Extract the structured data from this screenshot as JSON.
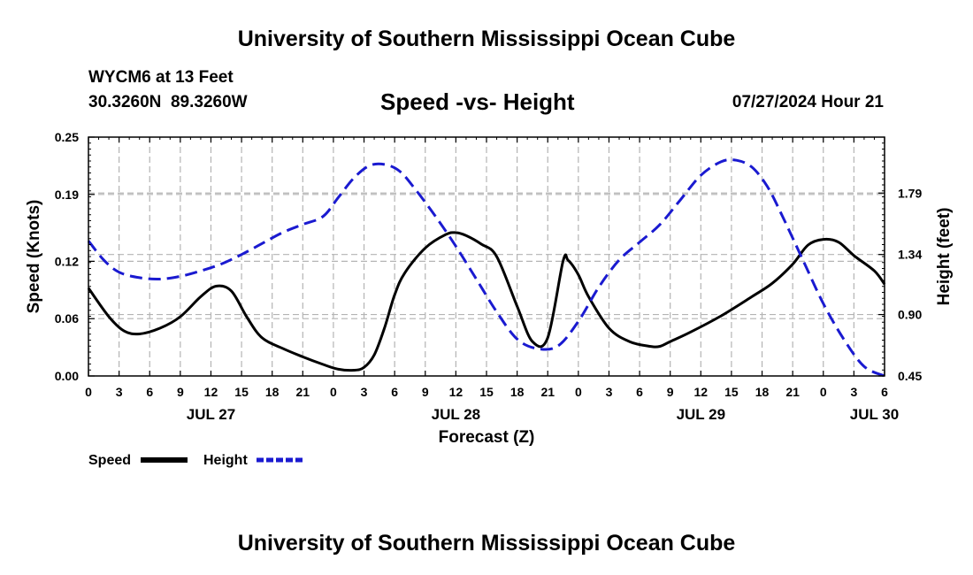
{
  "header": {
    "title": "University of Southern Mississippi Ocean Cube",
    "station": "WYCM6 at 13 Feet",
    "coords": "30.3260N  89.3260W",
    "subtitle": "Speed -vs- Height",
    "datetime": "07/27/2024 Hour 21"
  },
  "footer": {
    "title": "University of Southern Mississippi Ocean Cube"
  },
  "colors": {
    "speed": "#000000",
    "height": "#1a1ad0",
    "grid": "#b4b4b4"
  },
  "chart_data": {
    "type": "line",
    "title": "Speed -vs- Height",
    "xlabel": "Forecast (Z)",
    "ylabel": "Speed (Knots)",
    "y2label": "Height (feet)",
    "x_unit": "hours from Jul 27 00Z",
    "xlim": [
      0,
      78
    ],
    "ylim": [
      0,
      0.25
    ],
    "y2lim": [
      0.45,
      2.2
    ],
    "x_ticks": [
      0,
      3,
      6,
      9,
      12,
      15,
      18,
      21,
      24,
      27,
      30,
      33,
      36,
      39,
      42,
      45,
      48,
      51,
      54,
      57,
      60,
      63,
      66,
      69,
      72,
      75,
      78
    ],
    "x_tick_labels": [
      "0",
      "3",
      "6",
      "9",
      "12",
      "15",
      "18",
      "21",
      "0",
      "3",
      "6",
      "9",
      "12",
      "15",
      "18",
      "21",
      "0",
      "3",
      "6",
      "9",
      "12",
      "15",
      "18",
      "21",
      "0",
      "3",
      "6"
    ],
    "day_labels": [
      {
        "x": 12,
        "label": "JUL 27"
      },
      {
        "x": 36,
        "label": "JUL 28"
      },
      {
        "x": 60,
        "label": "JUL 29"
      },
      {
        "x": 77,
        "label": "JUL 30"
      }
    ],
    "y_ticks": [
      0.0,
      0.06,
      0.12,
      0.19,
      0.25
    ],
    "y_tick_labels": [
      "0.00",
      "0.06",
      "0.12",
      "0.19",
      "0.25"
    ],
    "y2_ticks": [
      0.45,
      0.9,
      1.34,
      1.79
    ],
    "y2_tick_labels": [
      "0.45",
      "0.90",
      "1.34",
      "1.79"
    ],
    "legend": [
      {
        "name": "Speed",
        "key": "speed"
      },
      {
        "name": "Height",
        "key": "height"
      }
    ],
    "series": [
      {
        "name": "Speed",
        "axis": "left",
        "style": "solid",
        "x": [
          0,
          2,
          3.5,
          5,
          7,
          9,
          11,
          12.5,
          14,
          15.5,
          17,
          19,
          21,
          23,
          24.5,
          26,
          27,
          28,
          29,
          30,
          31,
          33,
          35,
          36,
          37,
          38.5,
          40,
          42,
          43.5,
          45,
          46.5,
          47,
          48,
          49,
          51,
          53,
          55,
          56,
          57,
          59,
          62,
          65,
          67,
          69,
          70.5,
          72,
          73.5,
          75,
          77,
          78
        ],
        "values": [
          0.092,
          0.062,
          0.047,
          0.044,
          0.05,
          0.062,
          0.083,
          0.094,
          0.089,
          0.062,
          0.04,
          0.029,
          0.02,
          0.012,
          0.007,
          0.006,
          0.009,
          0.022,
          0.05,
          0.085,
          0.108,
          0.134,
          0.148,
          0.15,
          0.147,
          0.138,
          0.125,
          0.073,
          0.036,
          0.04,
          0.12,
          0.121,
          0.106,
          0.083,
          0.05,
          0.036,
          0.031,
          0.031,
          0.036,
          0.046,
          0.063,
          0.083,
          0.097,
          0.117,
          0.137,
          0.143,
          0.14,
          0.126,
          0.11,
          0.096
        ]
      },
      {
        "name": "Height",
        "axis": "right",
        "style": "dashed",
        "x": [
          0,
          1.5,
          3,
          5,
          7,
          9,
          11,
          13,
          15,
          17,
          19,
          21,
          23,
          24.5,
          26,
          27.5,
          29,
          30.5,
          32,
          34,
          36,
          38,
          40,
          42,
          44,
          46,
          48,
          50,
          52,
          54,
          56,
          58,
          60,
          62,
          63.5,
          65,
          66.5,
          68,
          70,
          72,
          74,
          76,
          78
        ],
        "values": [
          1.44,
          1.3,
          1.21,
          1.17,
          1.16,
          1.18,
          1.22,
          1.27,
          1.34,
          1.42,
          1.5,
          1.56,
          1.62,
          1.76,
          1.9,
          1.99,
          2.0,
          1.95,
          1.82,
          1.62,
          1.4,
          1.16,
          0.92,
          0.72,
          0.65,
          0.67,
          0.85,
          1.1,
          1.3,
          1.43,
          1.56,
          1.74,
          1.92,
          2.02,
          2.03,
          1.98,
          1.84,
          1.62,
          1.3,
          0.98,
          0.72,
          0.52,
          0.45
        ]
      }
    ]
  }
}
